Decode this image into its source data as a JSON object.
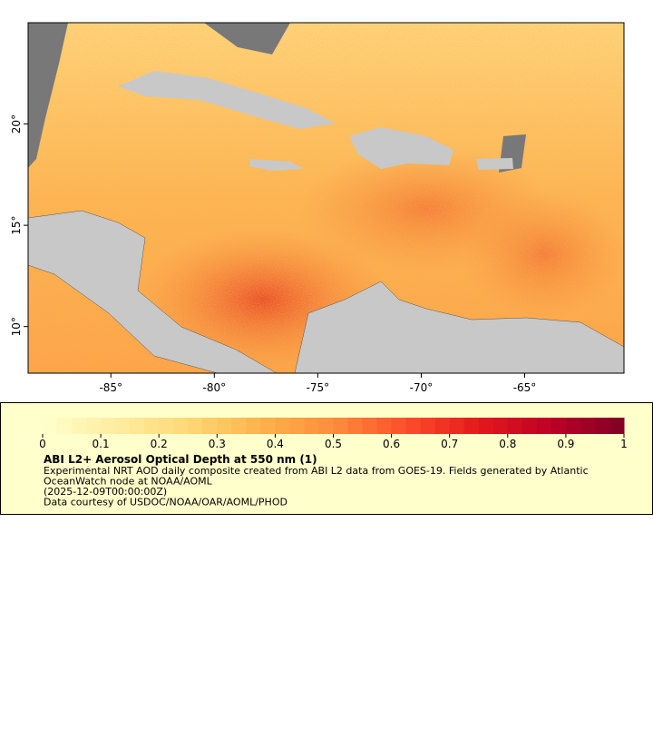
{
  "map": {
    "lonlim": [
      -89,
      -60.2
    ],
    "latlim": [
      7.7,
      25
    ],
    "lon_ticks": [
      {
        "value": -85,
        "label": "-85°"
      },
      {
        "value": -80,
        "label": "-80°"
      },
      {
        "value": -75,
        "label": "-75°"
      },
      {
        "value": -70,
        "label": "-70°"
      },
      {
        "value": -65,
        "label": "-65°"
      }
    ],
    "lat_ticks": [
      {
        "value": 10,
        "label": "10°"
      },
      {
        "value": 15,
        "label": "15°"
      },
      {
        "value": 20,
        "label": "20°"
      }
    ]
  },
  "legend": {
    "lim": [
      0,
      1
    ],
    "ticks": [
      0,
      0.1,
      0.2,
      0.3,
      0.4,
      0.5,
      0.6,
      0.7,
      0.8,
      0.9,
      1
    ],
    "colors": [
      "#ffffcc",
      "#ffeda0",
      "#fed976",
      "#feb24c",
      "#fd8d3c",
      "#fc4e2a",
      "#e31a1c",
      "#bd0026",
      "#800026"
    ],
    "title": "ABI L2+ Aerosol Optical Depth at 550 nm (1)",
    "lines": [
      "Experimental NRT AOD daily composite created from ABI L2 data from GOES-19. Fields generated by Atlantic",
      "OceanWatch node at NOAA/AOML",
      "(2025-12-09T00:00:00Z)",
      "Data courtesy of USDOC/NOAA/OAR/AOML/PHOD"
    ]
  }
}
